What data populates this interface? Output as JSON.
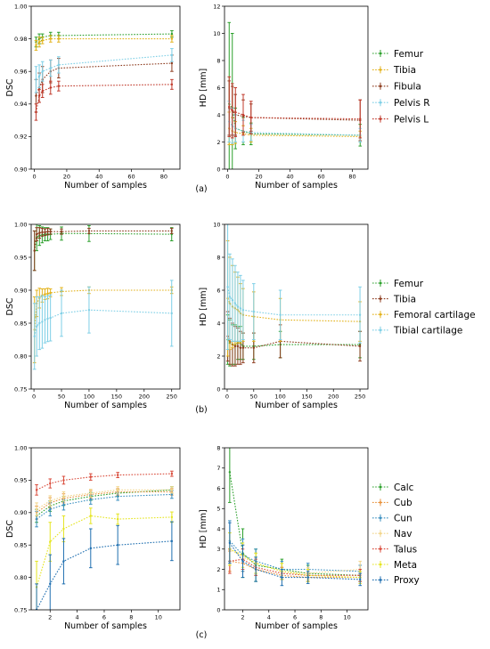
{
  "panels": [
    {
      "label": "(a)",
      "legend": [
        "Femur",
        "Tibia",
        "Fibula",
        "Pelvis R",
        "Pelvis L"
      ],
      "colors": [
        "#2ca02c",
        "#e3b21a",
        "#8c3b1e",
        "#7ecfe6",
        "#c0392b"
      ],
      "charts": [
        {
          "type": "line",
          "xlabel": "Number of samples",
          "ylabel": "DSC",
          "xlim": [
            -2,
            90
          ],
          "ylim": [
            0.9,
            1.0
          ],
          "xticks": [
            0,
            20,
            40,
            60,
            80
          ],
          "yticks": [
            0.9,
            0.92,
            0.94,
            0.96,
            0.98,
            1.0
          ],
          "ytick_labels": [
            "0.90",
            "0.92",
            "0.94",
            "0.96",
            "0.98",
            "1.00"
          ],
          "x": [
            1,
            3,
            5,
            10,
            15,
            85
          ],
          "series": [
            {
              "y": [
                0.978,
                0.98,
                0.981,
                0.982,
                0.982,
                0.983
              ],
              "err": [
                0.003,
                0.003,
                0.002,
                0.002,
                0.002,
                0.002
              ]
            },
            {
              "y": [
                0.976,
                0.978,
                0.979,
                0.98,
                0.98,
                0.98
              ],
              "err": [
                0.003,
                0.003,
                0.002,
                0.002,
                0.002,
                0.002
              ]
            },
            {
              "y": [
                0.945,
                0.95,
                0.955,
                0.96,
                0.962,
                0.965
              ],
              "err": [
                0.01,
                0.009,
                0.008,
                0.007,
                0.006,
                0.005
              ]
            },
            {
              "y": [
                0.955,
                0.957,
                0.96,
                0.962,
                0.964,
                0.97
              ],
              "err": [
                0.008,
                0.007,
                0.006,
                0.005,
                0.005,
                0.004
              ]
            },
            {
              "y": [
                0.935,
                0.945,
                0.948,
                0.95,
                0.951,
                0.952
              ],
              "err": [
                0.005,
                0.004,
                0.004,
                0.004,
                0.003,
                0.003
              ]
            }
          ]
        },
        {
          "type": "line",
          "xlabel": "Number of samples",
          "ylabel": "HD [mm]",
          "xlim": [
            -2,
            90
          ],
          "ylim": [
            0,
            12
          ],
          "xticks": [
            0,
            20,
            40,
            60,
            80
          ],
          "yticks": [
            0,
            2,
            4,
            6,
            8,
            10,
            12
          ],
          "ytick_labels": [
            "0",
            "2",
            "4",
            "6",
            "8",
            "10",
            "12"
          ],
          "x": [
            1,
            3,
            5,
            10,
            15,
            85
          ],
          "series": [
            {
              "y": [
                4.8,
                4.5,
                3.0,
                2.8,
                2.6,
                2.5
              ],
              "err": [
                6.0,
                5.5,
                1.5,
                1.0,
                0.8,
                0.8
              ]
            },
            {
              "y": [
                3.0,
                2.8,
                2.7,
                2.6,
                2.5,
                2.4
              ],
              "err": [
                1.2,
                1.0,
                0.8,
                0.6,
                0.5,
                0.4
              ]
            },
            {
              "y": [
                4.5,
                4.3,
                4.0,
                3.9,
                3.8,
                3.6
              ],
              "err": [
                2.0,
                1.8,
                1.5,
                1.2,
                1.0,
                1.5
              ]
            },
            {
              "y": [
                3.5,
                3.2,
                3.0,
                2.8,
                2.7,
                2.5
              ],
              "err": [
                1.5,
                1.3,
                1.0,
                0.8,
                0.6,
                0.5
              ]
            },
            {
              "y": [
                4.6,
                4.3,
                4.2,
                4.0,
                3.8,
                3.7
              ],
              "err": [
                2.2,
                2.0,
                1.8,
                1.5,
                1.2,
                1.4
              ]
            }
          ]
        }
      ]
    },
    {
      "label": "(b)",
      "legend": [
        "Femur",
        "Tibia",
        "Femoral cartilage",
        "Tibial cartilage"
      ],
      "colors": [
        "#2ca02c",
        "#8c3b1e",
        "#e3b21a",
        "#7ecfe6"
      ],
      "charts": [
        {
          "type": "line",
          "xlabel": "Number of samples",
          "ylabel": "DSC",
          "xlim": [
            -5,
            265
          ],
          "ylim": [
            0.75,
            1.0
          ],
          "xticks": [
            0,
            50,
            100,
            150,
            200,
            250
          ],
          "yticks": [
            0.75,
            0.8,
            0.85,
            0.9,
            0.95,
            1.0
          ],
          "ytick_labels": [
            "0.75",
            "0.80",
            "0.85",
            "0.90",
            "0.95",
            "1.00"
          ],
          "x": [
            1,
            5,
            10,
            15,
            20,
            25,
            30,
            50,
            100,
            250
          ],
          "series": [
            {
              "y": [
                0.96,
                0.98,
                0.983,
                0.984,
                0.985,
                0.985,
                0.985,
                0.986,
                0.986,
                0.985
              ],
              "err": [
                0.03,
                0.02,
                0.015,
                0.012,
                0.01,
                0.01,
                0.008,
                0.01,
                0.012,
                0.01
              ]
            },
            {
              "y": [
                0.96,
                0.985,
                0.987,
                0.988,
                0.988,
                0.989,
                0.989,
                0.989,
                0.99,
                0.99
              ],
              "err": [
                0.03,
                0.01,
                0.008,
                0.006,
                0.005,
                0.005,
                0.004,
                0.004,
                0.004,
                0.004
              ]
            },
            {
              "y": [
                0.84,
                0.88,
                0.888,
                0.892,
                0.894,
                0.895,
                0.896,
                0.898,
                0.9,
                0.9
              ],
              "err": [
                0.05,
                0.02,
                0.015,
                0.01,
                0.008,
                0.008,
                0.006,
                0.006,
                0.005,
                0.005
              ]
            },
            {
              "y": [
                0.83,
                0.845,
                0.85,
                0.852,
                0.855,
                0.857,
                0.858,
                0.865,
                0.87,
                0.865
              ],
              "err": [
                0.05,
                0.045,
                0.04,
                0.04,
                0.035,
                0.035,
                0.035,
                0.035,
                0.035,
                0.05
              ]
            }
          ]
        },
        {
          "type": "line",
          "xlabel": "Number of samples",
          "ylabel": "HD [mm]",
          "xlim": [
            -5,
            265
          ],
          "ylim": [
            0,
            10
          ],
          "xticks": [
            0,
            50,
            100,
            150,
            200,
            250
          ],
          "yticks": [
            0,
            2,
            4,
            6,
            8,
            10
          ],
          "ytick_labels": [
            "0",
            "2",
            "4",
            "6",
            "8",
            "10"
          ],
          "x": [
            1,
            5,
            10,
            15,
            20,
            25,
            30,
            50,
            100,
            250
          ],
          "series": [
            {
              "y": [
                3.0,
                2.8,
                2.7,
                2.7,
                2.8,
                2.8,
                2.6,
                2.6,
                2.7,
                2.7
              ],
              "err": [
                1.5,
                1.4,
                1.2,
                1.2,
                1.0,
                1.0,
                0.8,
                0.8,
                0.8,
                0.8
              ]
            },
            {
              "y": [
                3.2,
                2.9,
                2.7,
                2.6,
                2.6,
                2.5,
                2.5,
                2.5,
                2.9,
                2.6
              ],
              "err": [
                1.5,
                1.4,
                1.3,
                1.2,
                1.1,
                1.0,
                0.9,
                0.9,
                1.0,
                0.9
              ]
            },
            {
              "y": [
                5.5,
                5.2,
                5.0,
                4.9,
                4.8,
                4.6,
                4.5,
                4.4,
                4.2,
                4.1
              ],
              "err": [
                3.5,
                2.8,
                2.5,
                2.2,
                2.0,
                1.8,
                1.6,
                1.5,
                1.3,
                1.2
              ]
            },
            {
              "y": [
                6.2,
                5.6,
                5.4,
                5.2,
                5.0,
                4.9,
                4.8,
                4.7,
                4.5,
                4.5
              ],
              "err": [
                3.8,
                2.6,
                2.5,
                2.3,
                2.1,
                2.0,
                1.8,
                1.7,
                1.5,
                1.7
              ]
            }
          ]
        }
      ]
    },
    {
      "label": "(c)",
      "legend": [
        "Calc",
        "Cub",
        "Cun",
        "Nav",
        "Talus",
        "Meta",
        "Proxy"
      ],
      "colors": [
        "#2ca02c",
        "#e8913a",
        "#3a8fc0",
        "#f2d58a",
        "#d94a3a",
        "#e5e51f",
        "#1f6fb0"
      ],
      "charts": [
        {
          "type": "line",
          "xlabel": "Number of samples",
          "ylabel": "DSC",
          "xlim": [
            0.6,
            11.6
          ],
          "ylim": [
            0.75,
            1.0
          ],
          "xticks": [
            2,
            4,
            6,
            8,
            10
          ],
          "yticks": [
            0.75,
            0.8,
            0.85,
            0.9,
            0.95,
            1.0
          ],
          "ytick_labels": [
            "0.75",
            "0.80",
            "0.85",
            "0.90",
            "0.95",
            "1.00"
          ],
          "x": [
            1,
            2,
            3,
            5,
            7,
            11
          ],
          "series": [
            {
              "y": [
                0.895,
                0.91,
                0.918,
                0.925,
                0.93,
                0.935
              ],
              "err": [
                0.01,
                0.008,
                0.007,
                0.006,
                0.005,
                0.005
              ]
            },
            {
              "y": [
                0.9,
                0.915,
                0.922,
                0.928,
                0.932,
                0.932
              ],
              "err": [
                0.01,
                0.008,
                0.007,
                0.006,
                0.005,
                0.005
              ]
            },
            {
              "y": [
                0.89,
                0.905,
                0.912,
                0.92,
                0.925,
                0.928
              ],
              "err": [
                0.012,
                0.01,
                0.008,
                0.007,
                0.006,
                0.006
              ]
            },
            {
              "y": [
                0.905,
                0.918,
                0.925,
                0.93,
                0.935,
                0.935
              ],
              "err": [
                0.01,
                0.008,
                0.007,
                0.006,
                0.005,
                0.005
              ]
            },
            {
              "y": [
                0.935,
                0.945,
                0.95,
                0.955,
                0.958,
                0.96
              ],
              "err": [
                0.008,
                0.007,
                0.006,
                0.005,
                0.004,
                0.004
              ]
            },
            {
              "y": [
                0.785,
                0.855,
                0.875,
                0.895,
                0.89,
                0.893
              ],
              "err": [
                0.04,
                0.03,
                0.02,
                0.012,
                0.008,
                0.008
              ]
            },
            {
              "y": [
                0.75,
                0.79,
                0.825,
                0.845,
                0.85,
                0.856
              ],
              "err": [
                0.04,
                0.045,
                0.035,
                0.03,
                0.03,
                0.03
              ]
            }
          ]
        },
        {
          "type": "line",
          "xlabel": "Number of samples",
          "ylabel": "HD [mm]",
          "xlim": [
            0.6,
            11.6
          ],
          "ylim": [
            0,
            8
          ],
          "xticks": [
            2,
            4,
            6,
            8,
            10
          ],
          "yticks": [
            0,
            1,
            2,
            3,
            4,
            5,
            6,
            7,
            8
          ],
          "ytick_labels": [
            "0",
            "1",
            "2",
            "3",
            "4",
            "5",
            "6",
            "7",
            "8"
          ],
          "x": [
            1,
            2,
            3,
            5,
            7,
            11
          ],
          "series": [
            {
              "y": [
                6.8,
                2.8,
                2.2,
                2.0,
                1.8,
                1.7
              ],
              "err": [
                1.5,
                1.2,
                0.8,
                0.5,
                0.4,
                0.3
              ]
            },
            {
              "y": [
                2.4,
                2.3,
                2.0,
                1.7,
                1.6,
                1.6
              ],
              "err": [
                0.5,
                0.4,
                0.3,
                0.2,
                0.2,
                0.2
              ]
            },
            {
              "y": [
                3.4,
                2.7,
                2.4,
                2.0,
                2.0,
                1.9
              ],
              "err": [
                1.0,
                0.8,
                0.6,
                0.4,
                0.3,
                0.3
              ]
            },
            {
              "y": [
                3.0,
                2.6,
                2.3,
                1.9,
                1.8,
                2.0
              ],
              "err": [
                0.8,
                0.6,
                0.5,
                0.4,
                0.3,
                0.4
              ]
            },
            {
              "y": [
                2.4,
                2.5,
                2.1,
                1.8,
                1.7,
                1.7
              ],
              "err": [
                0.6,
                0.5,
                0.4,
                0.3,
                0.3,
                0.3
              ]
            },
            {
              "y": [
                3.0,
                2.7,
                2.3,
                1.9,
                1.7,
                1.6
              ],
              "err": [
                0.8,
                0.6,
                0.5,
                0.4,
                0.3,
                0.3
              ]
            },
            {
              "y": [
                3.3,
                2.4,
                2.0,
                1.6,
                1.6,
                1.5
              ],
              "err": [
                1.0,
                0.8,
                0.6,
                0.4,
                0.3,
                0.3
              ]
            }
          ]
        }
      ]
    }
  ]
}
